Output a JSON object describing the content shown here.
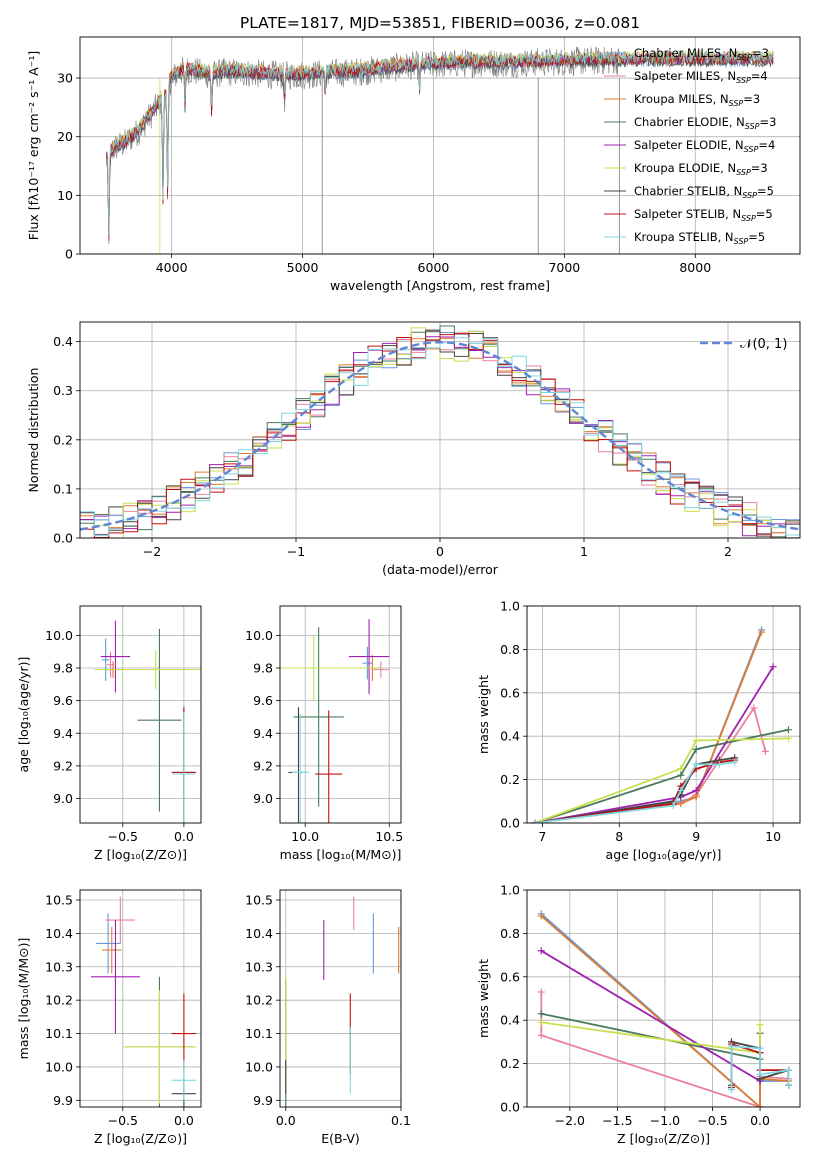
{
  "figure": {
    "title": "PLATE=1817, MJD=53851, FIBERID=0036, z=0.081"
  },
  "models": [
    {
      "name": "Chabrier MILES",
      "n": "3",
      "color": "#6699dd"
    },
    {
      "name": "Salpeter MILES",
      "n": "4",
      "color": "#e8829a"
    },
    {
      "name": "Kroupa MILES",
      "n": "3",
      "color": "#e07b30"
    },
    {
      "name": "Chabrier ELODIE",
      "n": "3",
      "color": "#4a7a5a"
    },
    {
      "name": "Salpeter ELODIE",
      "n": "4",
      "color": "#a020b0"
    },
    {
      "name": "Kroupa ELODIE",
      "n": "3",
      "color": "#c8e050"
    },
    {
      "name": "Chabrier STELIB",
      "n": "5",
      "color": "#444444"
    },
    {
      "name": "Salpeter STELIB",
      "n": "5",
      "color": "#c01010"
    },
    {
      "name": "Kroupa STELIB",
      "n": "5",
      "color": "#80d8e0"
    }
  ],
  "chart_data": [
    {
      "id": "spectrum",
      "type": "line",
      "title": "PLATE=1817, MJD=53851, FIBERID=0036, z=0.081",
      "xlabel": "wavelength [Angstrom, rest frame]",
      "ylabel": "Flux [fλ10⁻¹⁷ erg cm⁻² s⁻¹ A⁻¹]",
      "xlim": [
        3300,
        8800
      ],
      "ylim": [
        0,
        37
      ],
      "xticks": [
        4000,
        5000,
        6000,
        7000,
        8000
      ],
      "yticks": [
        0,
        10,
        20,
        30
      ],
      "legend": "upper right",
      "continuum": {
        "x": [
          3500,
          3560,
          3650,
          3750,
          3850,
          3950,
          4000,
          4100,
          4200,
          4300,
          4400,
          4600,
          4800,
          5000,
          5200,
          5400,
          5600,
          5800,
          6000,
          6200,
          6400,
          6600,
          6800,
          7000,
          7200,
          7400
        ],
        "y": [
          16,
          18,
          19,
          21,
          24,
          27,
          30,
          31.5,
          31,
          30.5,
          31,
          30.8,
          30.5,
          30.5,
          30.8,
          31,
          31.5,
          32,
          32.3,
          32.5,
          32.6,
          32.5,
          32.7,
          32.8,
          32.9,
          33
        ]
      },
      "data_end": 7420,
      "model_end": 8600,
      "absorption_lines": [
        {
          "x": 3520,
          "y": 2
        },
        {
          "x": 3934,
          "y": 9
        },
        {
          "x": 3969,
          "y": 10
        },
        {
          "x": 4102,
          "y": 25
        },
        {
          "x": 4305,
          "y": 24
        },
        {
          "x": 4862,
          "y": 26
        },
        {
          "x": 5175,
          "y": 27
        },
        {
          "x": 5894,
          "y": 28
        }
      ],
      "spikes": [
        {
          "x": 3910,
          "y": 0
        },
        {
          "x": 5150,
          "y": 0
        },
        {
          "x": 6800,
          "y": 0
        },
        {
          "x": 7420,
          "y": 0
        }
      ]
    },
    {
      "id": "residuals",
      "type": "histogram",
      "xlabel": "(data-model)/error",
      "ylabel": "Normed distribution",
      "xlim": [
        -2.5,
        2.5
      ],
      "ylim": [
        0,
        0.44
      ],
      "xticks": [
        -2,
        -1,
        0,
        1,
        2
      ],
      "yticks": [
        0.0,
        0.1,
        0.2,
        0.3,
        0.4
      ],
      "gaussian_label": "𝒩(0, 1)",
      "bin_width": 0.1
    },
    {
      "id": "age-vs-Z",
      "type": "errorbar",
      "xlabel": "Z [log₁₀(Z/Z⊙)]",
      "ylabel": "age  [log₁₀(age/yr)]",
      "xlim": [
        -0.85,
        0.14
      ],
      "ylim": [
        8.85,
        10.18
      ],
      "xticks": [
        -0.5,
        0.0
      ],
      "yticks": [
        9.0,
        9.2,
        9.4,
        9.6,
        9.8,
        10.0
      ],
      "points": [
        {
          "x": -0.64,
          "y": 9.85,
          "xe": 0.03,
          "ye": 0.13,
          "c": 0
        },
        {
          "x": -0.6,
          "y": 9.82,
          "xe": 0.03,
          "ye": 0.08,
          "c": 1
        },
        {
          "x": -0.58,
          "y": 9.79,
          "xe": 0.08,
          "ye": 0.05,
          "c": 2
        },
        {
          "x": -0.2,
          "y": 9.48,
          "xe": 0.18,
          "ye": 0.56,
          "c": 3
        },
        {
          "x": -0.56,
          "y": 9.87,
          "xe": 0.12,
          "ye": 0.22,
          "c": 4
        },
        {
          "x": -0.23,
          "y": 9.79,
          "xe": 0.5,
          "ye": 0.12,
          "c": 5
        },
        {
          "x": 0.0,
          "y": 9.16,
          "xe": 0.08,
          "ye": 0.4,
          "c": 6
        },
        {
          "x": 0.0,
          "y": 9.16,
          "xe": 0.1,
          "ye": 0.39,
          "c": 7
        },
        {
          "x": 0.0,
          "y": 9.15,
          "xe": 0.09,
          "ye": 0.38,
          "c": 8
        }
      ]
    },
    {
      "id": "age-vs-mass",
      "type": "errorbar",
      "xlabel": "mass [log₁₀(M/M⊙)]",
      "ylabel": "",
      "xlim": [
        9.85,
        10.57
      ],
      "ylim": [
        8.85,
        10.18
      ],
      "xticks": [
        10.0,
        10.5
      ],
      "yticks": [
        9.0,
        9.2,
        9.4,
        9.6,
        9.8,
        10.0
      ],
      "points": [
        {
          "x": 10.37,
          "y": 9.83,
          "xe": 0.03,
          "ye": 0.1,
          "c": 0
        },
        {
          "x": 10.45,
          "y": 9.79,
          "xe": 0.05,
          "ye": 0.05,
          "c": 1
        },
        {
          "x": 10.4,
          "y": 9.8,
          "xe": 0.04,
          "ye": 0.08,
          "c": 2
        },
        {
          "x": 10.08,
          "y": 9.5,
          "xe": 0.15,
          "ye": 0.55,
          "c": 3
        },
        {
          "x": 10.38,
          "y": 9.87,
          "xe": 0.12,
          "ye": 0.23,
          "c": 4
        },
        {
          "x": 10.05,
          "y": 9.8,
          "xe": 0.4,
          "ye": 0.2,
          "c": 5
        },
        {
          "x": 9.96,
          "y": 9.16,
          "xe": 0.06,
          "ye": 0.4,
          "c": 6
        },
        {
          "x": 10.14,
          "y": 9.15,
          "xe": 0.08,
          "ye": 0.39,
          "c": 7
        },
        {
          "x": 9.97,
          "y": 9.16,
          "xe": 0.05,
          "ye": 0.36,
          "c": 8
        }
      ]
    },
    {
      "id": "weight-vs-age",
      "type": "line",
      "xlabel": "age  [log₁₀(age/yr)]",
      "ylabel": "mass weight",
      "xlim": [
        6.8,
        10.35
      ],
      "ylim": [
        0,
        1
      ],
      "xticks": [
        7,
        8,
        9,
        10
      ],
      "yticks": [
        0.0,
        0.2,
        0.4,
        0.6,
        0.8,
        1.0
      ],
      "series": [
        {
          "c": 0,
          "x": [
            6.9,
            8.8,
            9.0,
            9.85
          ],
          "y": [
            0.0,
            0.1,
            0.12,
            0.89
          ]
        },
        {
          "c": 1,
          "x": [
            6.9,
            8.8,
            9.0,
            9.75,
            9.9
          ],
          "y": [
            0.0,
            0.09,
            0.13,
            0.53,
            0.33
          ]
        },
        {
          "c": 2,
          "x": [
            6.9,
            8.8,
            9.0,
            9.85
          ],
          "y": [
            0.0,
            0.09,
            0.12,
            0.88
          ]
        },
        {
          "c": 3,
          "x": [
            6.9,
            8.8,
            9.0,
            10.2
          ],
          "y": [
            0.0,
            0.22,
            0.34,
            0.43
          ]
        },
        {
          "c": 4,
          "x": [
            6.9,
            8.8,
            9.0,
            10.0
          ],
          "y": [
            0.0,
            0.12,
            0.15,
            0.72
          ]
        },
        {
          "c": 5,
          "x": [
            6.9,
            8.8,
            9.0,
            10.2
          ],
          "y": [
            0.0,
            0.25,
            0.38,
            0.39
          ]
        },
        {
          "c": 6,
          "x": [
            6.9,
            8.7,
            8.8,
            9.0,
            9.3,
            9.5
          ],
          "y": [
            0.0,
            0.1,
            0.13,
            0.27,
            0.29,
            0.3
          ]
        },
        {
          "c": 7,
          "x": [
            6.9,
            8.7,
            8.8,
            9.0,
            9.3,
            9.5
          ],
          "y": [
            0.0,
            0.09,
            0.17,
            0.25,
            0.28,
            0.29
          ]
        },
        {
          "c": 8,
          "x": [
            6.9,
            8.7,
            8.8,
            9.0,
            9.3,
            9.5
          ],
          "y": [
            0.0,
            0.08,
            0.15,
            0.27,
            0.27,
            0.28
          ]
        }
      ]
    },
    {
      "id": "mass-vs-Z",
      "type": "errorbar",
      "xlabel": "Z [log₁₀(Z/Z⊙)]",
      "ylabel": "mass [log₁₀(M/M⊙)]",
      "xlim": [
        -0.85,
        0.14
      ],
      "ylim": [
        9.88,
        10.53
      ],
      "xticks": [
        -0.5,
        0.0
      ],
      "yticks": [
        9.9,
        10.0,
        10.1,
        10.2,
        10.3,
        10.4,
        10.5
      ],
      "points": [
        {
          "x": -0.62,
          "y": 10.37,
          "xe": 0.1,
          "ye": 0.09,
          "c": 0
        },
        {
          "x": -0.52,
          "y": 10.44,
          "xe": 0.12,
          "ye": 0.07,
          "c": 1
        },
        {
          "x": -0.59,
          "y": 10.35,
          "xe": 0.08,
          "ye": 0.07,
          "c": 2
        },
        {
          "x": -0.2,
          "y": 10.06,
          "xe": 0.28,
          "ye": 0.21,
          "c": 3
        },
        {
          "x": -0.56,
          "y": 10.27,
          "xe": 0.2,
          "ye": 0.17,
          "c": 4
        },
        {
          "x": -0.2,
          "y": 10.06,
          "xe": 0.3,
          "ye": 0.17,
          "c": 5
        },
        {
          "x": 0.0,
          "y": 9.92,
          "xe": 0.1,
          "ye": 0.05,
          "c": 6
        },
        {
          "x": 0.0,
          "y": 10.1,
          "xe": 0.1,
          "ye": 0.12,
          "c": 7
        },
        {
          "x": 0.0,
          "y": 9.96,
          "xe": 0.1,
          "ye": 0.06,
          "c": 8
        }
      ]
    },
    {
      "id": "mass-vs-EBV",
      "type": "errorbar",
      "xlabel": "E(B-V)",
      "ylabel": "",
      "xlim": [
        -0.005,
        0.1
      ],
      "ylim": [
        9.88,
        10.53
      ],
      "xticks": [
        0.0,
        0.1
      ],
      "yticks": [
        9.9,
        10.0,
        10.1,
        10.2,
        10.3,
        10.4,
        10.5
      ],
      "points": [
        {
          "x": 0.076,
          "y": 10.37,
          "xe": 0,
          "ye": 0.09,
          "c": 0
        },
        {
          "x": 0.059,
          "y": 10.46,
          "xe": 0,
          "ye": 0.05,
          "c": 1
        },
        {
          "x": 0.098,
          "y": 10.35,
          "xe": 0,
          "ye": 0.07,
          "c": 2
        },
        {
          "x": 0.0,
          "y": 10.05,
          "xe": 0,
          "ye": 0.21,
          "c": 3
        },
        {
          "x": 0.033,
          "y": 10.35,
          "xe": 0,
          "ye": 0.09,
          "c": 4
        },
        {
          "x": 0.0,
          "y": 10.1,
          "xe": 0,
          "ye": 0.17,
          "c": 5
        },
        {
          "x": 0.0,
          "y": 9.97,
          "xe": 0,
          "ye": 0.05,
          "c": 6
        },
        {
          "x": 0.056,
          "y": 10.1,
          "xe": 0,
          "ye": 0.12,
          "c": 7
        },
        {
          "x": 0.056,
          "y": 10.02,
          "xe": 0,
          "ye": 0.1,
          "c": 8
        }
      ]
    },
    {
      "id": "weight-vs-Z",
      "type": "line",
      "xlabel": "Z [log₁₀(Z/Z⊙)]",
      "ylabel": "mass weight",
      "xlim": [
        -2.45,
        0.42
      ],
      "ylim": [
        0,
        1
      ],
      "xticks": [
        -2.0,
        -1.5,
        -1.0,
        -0.5,
        0.0
      ],
      "yticks": [
        0.0,
        0.2,
        0.4,
        0.6,
        0.8,
        1.0
      ],
      "series": [
        {
          "c": 0,
          "x": [
            -2.3,
            0.0,
            0.0,
            0.3
          ],
          "y": [
            0.89,
            0.0,
            0.12,
            0.12
          ]
        },
        {
          "c": 1,
          "x": [
            -2.3,
            -2.3,
            0.0,
            0.0,
            0.3
          ],
          "y": [
            0.53,
            0.33,
            0.0,
            0.14,
            0.13
          ]
        },
        {
          "c": 2,
          "x": [
            -2.3,
            0.0,
            0.0,
            0.3
          ],
          "y": [
            0.88,
            0.0,
            0.13,
            0.12
          ]
        },
        {
          "c": 3,
          "x": [
            -2.3,
            0.0,
            0.0
          ],
          "y": [
            0.43,
            0.22,
            0.34
          ]
        },
        {
          "c": 4,
          "x": [
            -2.3,
            0.0,
            0.0
          ],
          "y": [
            0.72,
            0.12,
            0.15
          ]
        },
        {
          "c": 5,
          "x": [
            -2.3,
            0.0,
            0.0
          ],
          "y": [
            0.39,
            0.25,
            0.38
          ]
        },
        {
          "c": 6,
          "x": [
            -0.3,
            -0.3,
            0.0,
            0.0,
            0.3,
            0.3
          ],
          "y": [
            0.1,
            0.3,
            0.27,
            0.13,
            0.17,
            0.1
          ]
        },
        {
          "c": 7,
          "x": [
            -0.3,
            -0.3,
            0.0,
            0.0,
            0.3,
            0.3
          ],
          "y": [
            0.09,
            0.29,
            0.25,
            0.17,
            0.17,
            0.1
          ]
        },
        {
          "c": 8,
          "x": [
            -0.3,
            -0.3,
            0.0,
            0.0,
            0.3,
            0.3
          ],
          "y": [
            0.08,
            0.28,
            0.27,
            0.15,
            0.17,
            0.1
          ]
        }
      ]
    }
  ]
}
